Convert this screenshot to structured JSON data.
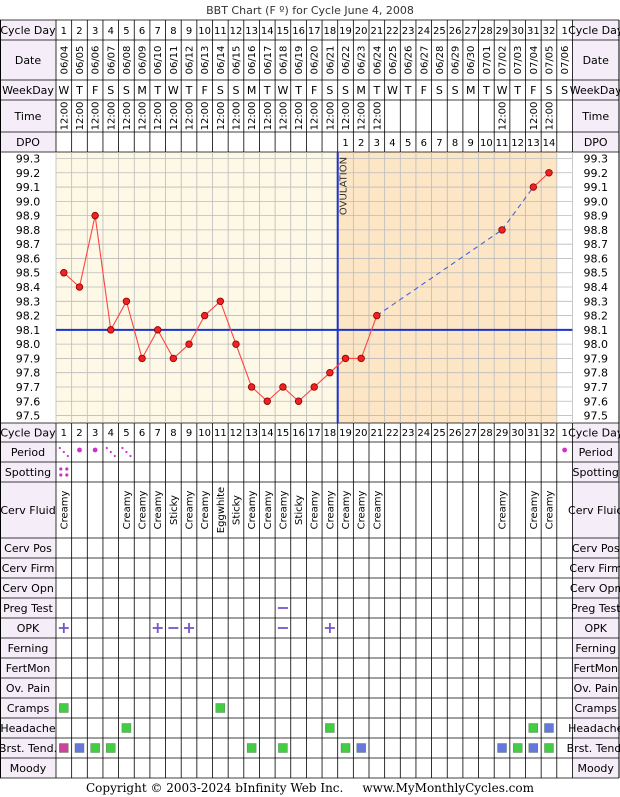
{
  "title": "BBT Chart (F º) for Cycle June 4, 2008",
  "copyright": "Copyright © 2003-2024 bInfinity Web Inc.     www.MyMonthlyCycles.com",
  "row_labels": {
    "cycle_day": "Cycle Day",
    "date": "Date",
    "weekday": "WeekDay",
    "time": "Time",
    "dpo": "DPO",
    "period": "Period",
    "spotting": "Spotting",
    "cerv_fluid": "Cerv Fluid",
    "cerv_pos": "Cerv Pos",
    "cerv_firm": "Cerv Firm",
    "cerv_opn": "Cerv Opn",
    "preg_test": "Preg Test",
    "opk": "OPK",
    "ferning": "Ferning",
    "fertmon": "FertMon",
    "ov_pain": "Ov. Pain",
    "cramps": "Cramps",
    "headache": "Headache",
    "brst_tend": "Brst. Tend.",
    "moody": "Moody"
  },
  "cycle_days": [
    "1",
    "2",
    "3",
    "4",
    "5",
    "6",
    "7",
    "8",
    "9",
    "10",
    "11",
    "12",
    "13",
    "14",
    "15",
    "16",
    "17",
    "18",
    "19",
    "20",
    "21",
    "22",
    "23",
    "24",
    "25",
    "26",
    "27",
    "28",
    "29",
    "30",
    "31",
    "32",
    "1"
  ],
  "dates": [
    "06/04",
    "06/05",
    "06/06",
    "06/07",
    "06/08",
    "06/09",
    "06/10",
    "06/11",
    "06/12",
    "06/13",
    "06/14",
    "06/15",
    "06/16",
    "06/17",
    "06/18",
    "06/19",
    "06/20",
    "06/21",
    "06/22",
    "06/23",
    "06/24",
    "06/25",
    "06/26",
    "06/27",
    "06/28",
    "06/29",
    "06/30",
    "07/01",
    "07/02",
    "07/03",
    "07/04",
    "07/05",
    "07/06"
  ],
  "weekdays": [
    "W",
    "T",
    "F",
    "S",
    "S",
    "M",
    "T",
    "W",
    "T",
    "F",
    "S",
    "S",
    "M",
    "T",
    "W",
    "T",
    "F",
    "S",
    "S",
    "M",
    "T",
    "W",
    "T",
    "F",
    "S",
    "S",
    "M",
    "T",
    "W",
    "T",
    "F",
    "S",
    "S"
  ],
  "times": [
    "12:00",
    "12:00",
    "12:00",
    "12:00",
    "12:00",
    "12:00",
    "12:00",
    "12:00",
    "12:00",
    "12:00",
    "12:00",
    "12:00",
    "12:00",
    "12:00",
    "12:00",
    "12:00",
    "12:00",
    "12:00",
    "12:00",
    "12:00",
    "12:00",
    "",
    "",
    "",
    "",
    "",
    "",
    "",
    "12:00",
    "",
    "12:00",
    "12:00",
    ""
  ],
  "dpo": [
    "",
    "",
    "",
    "",
    "",
    "",
    "",
    "",
    "",
    "",
    "",
    "",
    "",
    "",
    "",
    "",
    "",
    "",
    "1",
    "2",
    "3",
    "4",
    "5",
    "6",
    "7",
    "8",
    "9",
    "10",
    "11",
    "12",
    "13",
    "14",
    ""
  ],
  "ovulation_label": "OVULATION",
  "chart_data": {
    "type": "line",
    "title": "BBT Chart (F º) for Cycle June 4, 2008",
    "x_label": "Cycle Day",
    "y_ticks": [
      "99.3",
      "99.2",
      "99.1",
      "99.0",
      "98.9",
      "98.8",
      "98.7",
      "98.6",
      "98.5",
      "98.4",
      "98.3",
      "98.2",
      "98.1",
      "98.0",
      "97.9",
      "97.8",
      "97.7",
      "97.6",
      "97.5"
    ],
    "ylim": [
      97.5,
      99.3
    ],
    "coverline": 98.1,
    "ovulation_day": 18,
    "series": [
      {
        "x": [
          1,
          2,
          3,
          4,
          5,
          6,
          7,
          8,
          9,
          10,
          11,
          12,
          13,
          14,
          15,
          16,
          17,
          18,
          19,
          20,
          21,
          29,
          31,
          32
        ],
        "y": [
          98.5,
          98.4,
          98.9,
          98.1,
          98.3,
          97.9,
          98.1,
          97.9,
          98.0,
          98.2,
          98.3,
          98.0,
          97.7,
          97.6,
          97.7,
          97.6,
          97.7,
          97.8,
          97.9,
          97.9,
          98.2,
          98.8,
          99.1,
          99.2
        ]
      }
    ],
    "colors": {
      "line": "#ff4444",
      "point": "#ee2222",
      "coverline": "#1a33cc",
      "dashed": "#4466dd",
      "luteal": "#fce6c6",
      "follicular": "#fdf9e6"
    }
  },
  "period": [
    {
      "day": 1,
      "kind": "light"
    },
    {
      "day": 2,
      "kind": "heavy"
    },
    {
      "day": 3,
      "kind": "heavy"
    },
    {
      "day": 4,
      "kind": "light"
    },
    {
      "day": 5,
      "kind": "light"
    },
    {
      "day": 33,
      "kind": "heavy"
    }
  ],
  "spotting_days": [
    1
  ],
  "cerv_fluid": [
    "Creamy",
    "",
    "",
    "",
    "Creamy",
    "Creamy",
    "Creamy",
    "Sticky",
    "Creamy",
    "Creamy",
    "Eggwhite",
    "Sticky",
    "Creamy",
    "Creamy",
    "Creamy",
    "Sticky",
    "Creamy",
    "Creamy",
    "Creamy",
    "Creamy",
    "Creamy",
    "",
    "",
    "",
    "",
    "",
    "",
    "",
    "Creamy",
    "",
    "Creamy",
    "Creamy",
    ""
  ],
  "preg_test": [
    {
      "day": 15,
      "symbol": "−"
    }
  ],
  "opk": [
    {
      "day": 1,
      "symbol": "+"
    },
    {
      "day": 7,
      "symbol": "+"
    },
    {
      "day": 8,
      "symbol": "−"
    },
    {
      "day": 9,
      "symbol": "+"
    },
    {
      "day": 15,
      "symbol": "−"
    },
    {
      "day": 18,
      "symbol": "+"
    }
  ],
  "cramps": [
    {
      "day": 1,
      "color": "#44cc44"
    },
    {
      "day": 11,
      "color": "#44cc44"
    }
  ],
  "headache": [
    {
      "day": 5,
      "color": "#44cc44"
    },
    {
      "day": 18,
      "color": "#44cc44"
    },
    {
      "day": 31,
      "color": "#44cc44"
    },
    {
      "day": 32,
      "color": "#6677dd"
    }
  ],
  "brst_tend": [
    {
      "day": 1,
      "color": "#cc4499"
    },
    {
      "day": 2,
      "color": "#6677dd"
    },
    {
      "day": 3,
      "color": "#44cc44"
    },
    {
      "day": 4,
      "color": "#44cc44"
    },
    {
      "day": 13,
      "color": "#44cc44"
    },
    {
      "day": 15,
      "color": "#44cc44"
    },
    {
      "day": 19,
      "color": "#44cc44"
    },
    {
      "day": 20,
      "color": "#6677dd"
    },
    {
      "day": 29,
      "color": "#6677dd"
    },
    {
      "day": 30,
      "color": "#44cc44"
    },
    {
      "day": 31,
      "color": "#6677dd"
    },
    {
      "day": 32,
      "color": "#44cc44"
    }
  ],
  "symbol_colors": {
    "opk": "#7755cc",
    "period": "#cc33cc",
    "spotting": "#cc33cc"
  }
}
